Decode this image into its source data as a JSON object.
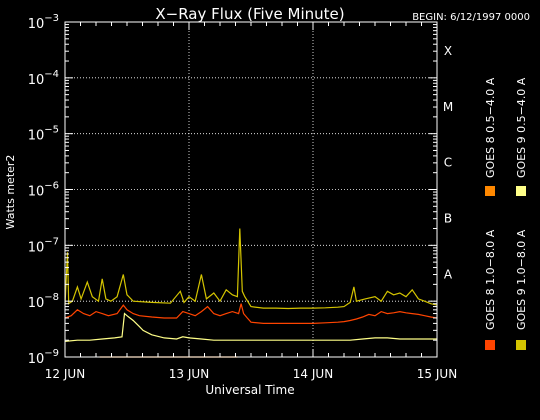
{
  "chart_data": {
    "type": "line",
    "title": "X−Ray Flux (Five Minute)",
    "begin_label": "BEGIN: 6/12/1997 0000",
    "ylabel": "Watts meter2",
    "xlabel": "Universal Time",
    "y_scale": "log",
    "ylim": [
      1e-09,
      0.001
    ],
    "y_ticks": [
      {
        "value": 0.001,
        "mantissa": "10",
        "exponent": "−3"
      },
      {
        "value": 0.0001,
        "mantissa": "10",
        "exponent": "−4"
      },
      {
        "value": 1e-05,
        "mantissa": "10",
        "exponent": "−5"
      },
      {
        "value": 1e-06,
        "mantissa": "10",
        "exponent": "−6"
      },
      {
        "value": 1e-07,
        "mantissa": "10",
        "exponent": "−7"
      },
      {
        "value": 1e-08,
        "mantissa": "10",
        "exponent": "−8"
      },
      {
        "value": 1e-09,
        "mantissa": "10",
        "exponent": "−9"
      }
    ],
    "x_ticks": [
      "12 JUN",
      "13 JUN",
      "14 JUN",
      "15 JUN"
    ],
    "xlim_days": [
      12,
      15
    ],
    "flare_classes": [
      {
        "label": "X",
        "value": 0.0001
      },
      {
        "label": "M",
        "value": 1e-05
      },
      {
        "label": "C",
        "value": 1e-06
      },
      {
        "label": "B",
        "value": 1e-07
      },
      {
        "label": "A",
        "value": 1e-08
      }
    ],
    "grid": true,
    "legend_position": "right",
    "series": [
      {
        "name": "GOES 8 1.0−8.0 A",
        "color": "#ff4400",
        "points": [
          [
            12.0,
            5e-09
          ],
          [
            12.05,
            5.5e-09
          ],
          [
            12.1,
            7e-09
          ],
          [
            12.15,
            6e-09
          ],
          [
            12.2,
            5.5e-09
          ],
          [
            12.25,
            6.5e-09
          ],
          [
            12.3,
            6e-09
          ],
          [
            12.35,
            5.5e-09
          ],
          [
            12.42,
            6e-09
          ],
          [
            12.47,
            8.5e-09
          ],
          [
            12.5,
            7e-09
          ],
          [
            12.55,
            6e-09
          ],
          [
            12.6,
            5.5e-09
          ],
          [
            12.7,
            5.2e-09
          ],
          [
            12.8,
            5e-09
          ],
          [
            12.9,
            5e-09
          ],
          [
            12.95,
            6.5e-09
          ],
          [
            13.0,
            6e-09
          ],
          [
            13.05,
            5.5e-09
          ],
          [
            13.1,
            6.5e-09
          ],
          [
            13.15,
            8e-09
          ],
          [
            13.2,
            6e-09
          ],
          [
            13.25,
            5.5e-09
          ],
          [
            13.3,
            6e-09
          ],
          [
            13.35,
            6.5e-09
          ],
          [
            13.4,
            6e-09
          ],
          [
            13.42,
            9e-09
          ],
          [
            13.44,
            6e-09
          ],
          [
            13.47,
            5e-09
          ],
          [
            13.5,
            4.2e-09
          ],
          [
            13.6,
            4e-09
          ],
          [
            13.7,
            4e-09
          ],
          [
            13.8,
            4e-09
          ],
          [
            13.9,
            4e-09
          ],
          [
            14.0,
            4e-09
          ],
          [
            14.1,
            4.1e-09
          ],
          [
            14.2,
            4.2e-09
          ],
          [
            14.25,
            4.3e-09
          ],
          [
            14.3,
            4.5e-09
          ],
          [
            14.35,
            4.8e-09
          ],
          [
            14.4,
            5.2e-09
          ],
          [
            14.45,
            5.8e-09
          ],
          [
            14.5,
            5.5e-09
          ],
          [
            14.55,
            6.5e-09
          ],
          [
            14.6,
            6e-09
          ],
          [
            14.65,
            6.2e-09
          ],
          [
            14.7,
            6.5e-09
          ],
          [
            14.75,
            6.2e-09
          ],
          [
            14.8,
            6e-09
          ],
          [
            14.85,
            5.8e-09
          ],
          [
            14.9,
            5.5e-09
          ],
          [
            14.95,
            5.2e-09
          ],
          [
            15.0,
            5e-09
          ]
        ]
      },
      {
        "name": "GOES 8 0.5−4.0 A",
        "color": "#ff8800",
        "points": [
          [
            12.28,
            1e-09
          ],
          [
            12.3,
            1e-09
          ],
          [
            12.6,
            1e-09
          ],
          [
            12.62,
            1e-09
          ],
          [
            13.38,
            1e-09
          ],
          [
            13.39,
            1e-09
          ]
        ]
      },
      {
        "name": "GOES 9 1.0−8.0 A",
        "color": "#d4c400",
        "points": [
          [
            12.0,
            8.5e-09
          ],
          [
            12.02,
            7.5e-08
          ],
          [
            12.03,
            9e-09
          ],
          [
            12.06,
            1e-08
          ],
          [
            12.1,
            1.8e-08
          ],
          [
            12.13,
            1.1e-08
          ],
          [
            12.18,
            2.2e-08
          ],
          [
            12.22,
            1.2e-08
          ],
          [
            12.27,
            1e-08
          ],
          [
            12.3,
            2.5e-08
          ],
          [
            12.33,
            1.1e-08
          ],
          [
            12.37,
            1e-08
          ],
          [
            12.42,
            1.2e-08
          ],
          [
            12.47,
            3e-08
          ],
          [
            12.5,
            1.3e-08
          ],
          [
            12.55,
            1e-08
          ],
          [
            12.7,
            9.5e-09
          ],
          [
            12.85,
            9.2e-09
          ],
          [
            12.93,
            1.5e-08
          ],
          [
            12.96,
            9.5e-09
          ],
          [
            13.0,
            1.2e-08
          ],
          [
            13.05,
            1e-08
          ],
          [
            13.1,
            3e-08
          ],
          [
            13.14,
            1.1e-08
          ],
          [
            13.2,
            1.4e-08
          ],
          [
            13.25,
            1e-08
          ],
          [
            13.3,
            1.6e-08
          ],
          [
            13.35,
            1.3e-08
          ],
          [
            13.39,
            1.2e-08
          ],
          [
            13.41,
            2e-07
          ],
          [
            13.43,
            1.5e-08
          ],
          [
            13.45,
            1.2e-08
          ],
          [
            13.5,
            8e-09
          ],
          [
            13.6,
            7.5e-09
          ],
          [
            13.7,
            7.5e-09
          ],
          [
            13.8,
            7.4e-09
          ],
          [
            13.9,
            7.5e-09
          ],
          [
            14.0,
            7.5e-09
          ],
          [
            14.1,
            7.6e-09
          ],
          [
            14.2,
            7.8e-09
          ],
          [
            14.25,
            8e-09
          ],
          [
            14.3,
            9.5e-09
          ],
          [
            14.33,
            1.8e-08
          ],
          [
            14.35,
            1e-08
          ],
          [
            14.42,
            1.1e-08
          ],
          [
            14.5,
            1.2e-08
          ],
          [
            14.55,
            1e-08
          ],
          [
            14.6,
            1.5e-08
          ],
          [
            14.65,
            1.3e-08
          ],
          [
            14.7,
            1.4e-08
          ],
          [
            14.75,
            1.2e-08
          ],
          [
            14.8,
            1.6e-08
          ],
          [
            14.85,
            1.1e-08
          ],
          [
            14.9,
            1e-08
          ],
          [
            14.95,
            9e-09
          ],
          [
            15.0,
            8.5e-09
          ]
        ]
      },
      {
        "name": "GOES 9 0.5−4.0 A",
        "color": "#ffff88",
        "points": [
          [
            12.0,
            1.9e-09
          ],
          [
            12.1,
            2e-09
          ],
          [
            12.2,
            2e-09
          ],
          [
            12.3,
            2.1e-09
          ],
          [
            12.4,
            2.2e-09
          ],
          [
            12.46,
            2.3e-09
          ],
          [
            12.48,
            6e-09
          ],
          [
            12.5,
            5.5e-09
          ],
          [
            12.55,
            4.5e-09
          ],
          [
            12.6,
            3.5e-09
          ],
          [
            12.63,
            3e-09
          ],
          [
            12.7,
            2.5e-09
          ],
          [
            12.8,
            2.2e-09
          ],
          [
            12.9,
            2.1e-09
          ],
          [
            12.95,
            2.3e-09
          ],
          [
            13.0,
            2.2e-09
          ],
          [
            13.1,
            2.1e-09
          ],
          [
            13.2,
            2e-09
          ],
          [
            13.3,
            2e-09
          ],
          [
            13.4,
            2e-09
          ],
          [
            13.5,
            2e-09
          ],
          [
            13.6,
            2e-09
          ],
          [
            13.7,
            2e-09
          ],
          [
            13.8,
            2e-09
          ],
          [
            13.9,
            2e-09
          ],
          [
            14.0,
            2e-09
          ],
          [
            14.1,
            2e-09
          ],
          [
            14.2,
            2e-09
          ],
          [
            14.3,
            2e-09
          ],
          [
            14.4,
            2.1e-09
          ],
          [
            14.5,
            2.2e-09
          ],
          [
            14.6,
            2.2e-09
          ],
          [
            14.7,
            2.1e-09
          ],
          [
            14.8,
            2.1e-09
          ],
          [
            14.9,
            2.1e-09
          ],
          [
            15.0,
            2.1e-09
          ]
        ]
      }
    ]
  }
}
